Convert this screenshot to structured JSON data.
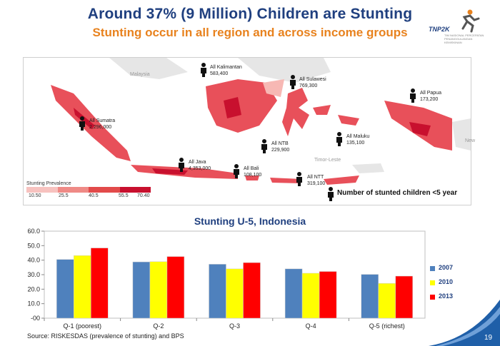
{
  "slide": {
    "title": "Around 37% (9 Million) Children are Stunting",
    "subtitle": "Stunting occur in all region and across income groups",
    "logo_text": "TNP2K",
    "logo_subtext": "TIM NASIONAL PERCEPATAN PENANGGULANGAN KEMISKINAN",
    "source": "Source: RISKESDAS (prevalence of stunting) and BPS",
    "page_number": "19"
  },
  "map": {
    "regions": [
      {
        "name": "All Kalimantan",
        "value": "583,400"
      },
      {
        "name": "All Sulawesi",
        "value": "769,300"
      },
      {
        "name": "All Papua",
        "value": "173,200"
      },
      {
        "name": "All Sumatra",
        "value": "2,296,000"
      },
      {
        "name": "All Maluku",
        "value": "135,100"
      },
      {
        "name": "All NTB",
        "value": "229,900"
      },
      {
        "name": "All Java",
        "value": "4,353,000"
      },
      {
        "name": "All Bali",
        "value": "108,100"
      },
      {
        "name": "All NTT",
        "value": "319,100"
      }
    ],
    "country_labels": [
      "Malaysia",
      "New",
      "Timor-Leste"
    ],
    "legend": {
      "title": "Stunting Prevalence",
      "ticks": [
        "10.50",
        "25.5",
        "40.5",
        "55.5",
        "70.40"
      ],
      "colors": [
        "#f7c2bf",
        "#ef8a86",
        "#e24a4a",
        "#c8102e"
      ]
    },
    "key_label": "Number of stunted children <5 year"
  },
  "chart_data": {
    "type": "bar",
    "title": "Stunting U-5, Indonesia",
    "categories": [
      "Q-1 (poorest)",
      "Q-2",
      "Q-3",
      "Q-4",
      "Q-5 (richest)"
    ],
    "series": [
      {
        "name": "2007",
        "color": "#4f81bd",
        "values": [
          40.5,
          38.8,
          37.2,
          34.0,
          30.2
        ]
      },
      {
        "name": "2010",
        "color": "#ffff00",
        "values": [
          43.2,
          39.0,
          34.0,
          31.0,
          24.0
        ]
      },
      {
        "name": "2013",
        "color": "#ff0000",
        "values": [
          48.4,
          42.5,
          38.3,
          32.2,
          29.0
        ]
      }
    ],
    "yticks": [
      "-00",
      "10.0",
      "20.0",
      "30.0",
      "40.0",
      "50.0",
      "60.0"
    ],
    "ylim": [
      0,
      60
    ],
    "legend_position": "right",
    "grid": false
  }
}
